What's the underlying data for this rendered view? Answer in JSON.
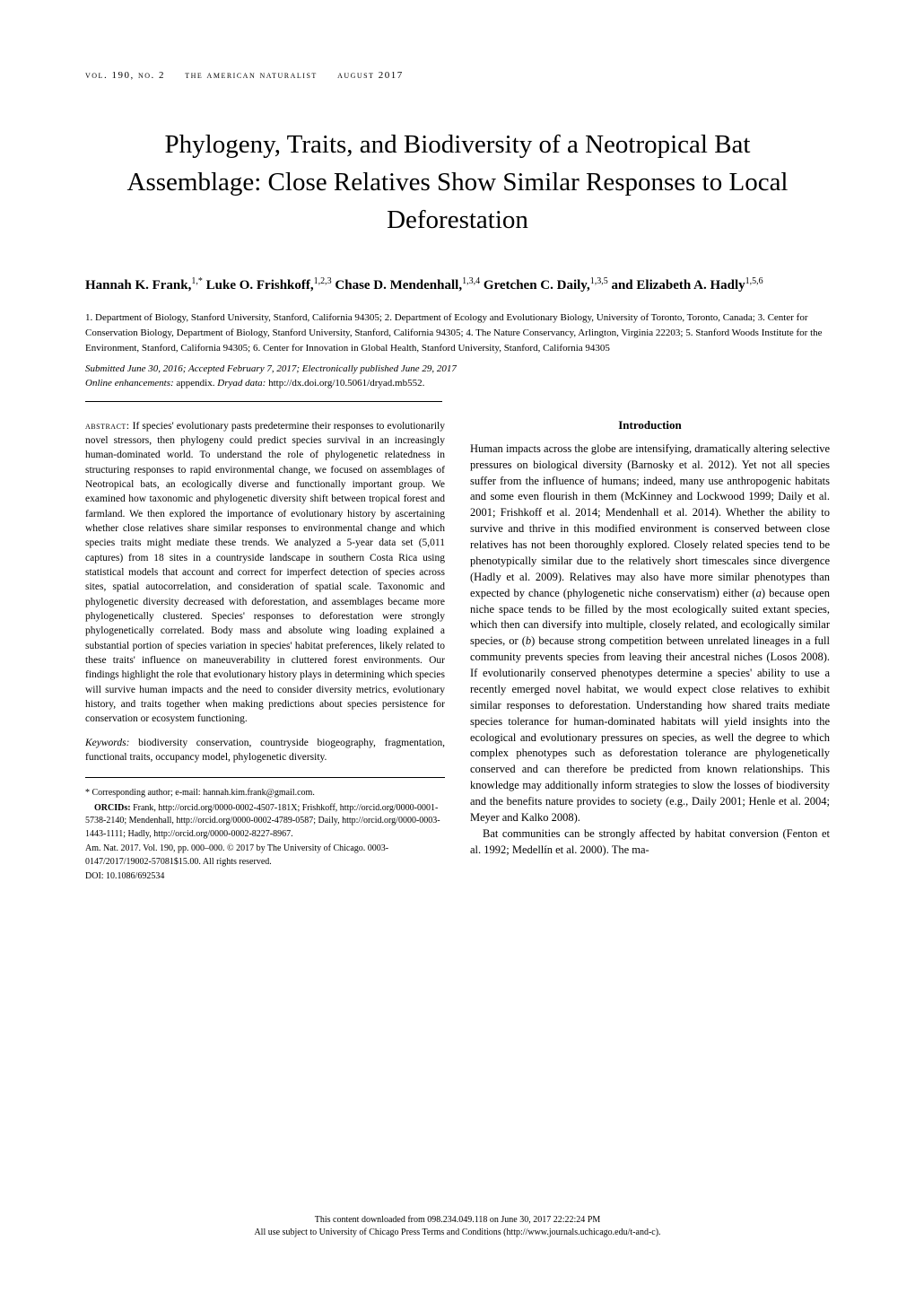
{
  "header": {
    "volume": "vol. 190, no. 2",
    "journal": "the american naturalist",
    "date": "august 2017"
  },
  "title": "Phylogeny, Traits, and Biodiversity of a Neotropical Bat Assemblage: Close Relatives Show Similar Responses to Local Deforestation",
  "authors": {
    "list": "Hannah K. Frank,",
    "sup1": "1,*",
    "a2": " Luke O. Frishkoff,",
    "sup2": "1,2,3",
    "a3": " Chase D. Mendenhall,",
    "sup3": "1,3,4",
    "a4": " Gretchen C. Daily,",
    "sup4": "1,3,5",
    "and": " and Elizabeth A. Hadly",
    "sup5": "1,5,6"
  },
  "affiliations": "1. Department of Biology, Stanford University, Stanford, California 94305;   2. Department of Ecology and Evolutionary Biology, University of Toronto, Toronto, Canada;   3. Center for Conservation Biology, Department of Biology, Stanford University, Stanford, California 94305;   4. The Nature Conservancy, Arlington, Virginia 22203;   5. Stanford Woods Institute for the Environment, Stanford, California 94305;   6. Center for Innovation in Global Health, Stanford University, Stanford, California 94305",
  "submitted": "Submitted June 30, 2016; Accepted February 7, 2017; Electronically published June 29, 2017",
  "enhancements": {
    "label": "Online enhancements:",
    "text": " appendix. ",
    "dryad_label": "Dryad data:",
    "dryad_url": " http://dx.doi.org/10.5061/dryad.mb552."
  },
  "abstract": {
    "label": "abstract:",
    "text": " If species' evolutionary pasts predetermine their responses to evolutionarily novel stressors, then phylogeny could predict species survival in an increasingly human-dominated world. To understand the role of phylogenetic relatedness in structuring responses to rapid environmental change, we focused on assemblages of Neotropical bats, an ecologically diverse and functionally important group. We examined how taxonomic and phylogenetic diversity shift between tropical forest and farmland. We then explored the importance of evolutionary history by ascertaining whether close relatives share similar responses to environmental change and which species traits might mediate these trends. We analyzed a 5-year data set (5,011 captures) from 18 sites in a countryside landscape in southern Costa Rica using statistical models that account and correct for imperfect detection of species across sites, spatial autocorrelation, and consideration of spatial scale. Taxonomic and phylogenetic diversity decreased with deforestation, and assemblages became more phylogenetically clustered. Species' responses to deforestation were strongly phylogenetically correlated. Body mass and absolute wing loading explained a substantial portion of species variation in species' habitat preferences, likely related to these traits' influence on maneuverability in cluttered forest environments. Our findings highlight the role that evolutionary history plays in determining which species will survive human impacts and the need to consider diversity metrics, evolutionary history, and traits together when making predictions about species persistence for conservation or ecosystem functioning."
  },
  "keywords": {
    "label": "Keywords:",
    "text": " biodiversity conservation, countryside biogeography, fragmentation, functional traits, occupancy model, phylogenetic diversity."
  },
  "introduction": {
    "heading": "Introduction",
    "para1_a": "Human impacts across the globe are intensifying, dramatically altering selective pressures on biological diversity (Barnosky et al. 2012). Yet not all species suffer from the influence of humans; indeed, many use anthropogenic habitats and some even flourish in them (McKinney and Lockwood 1999; Daily et al. 2001; Frishkoff et al. 2014; Mendenhall et al. 2014). Whether the ability to survive and thrive in this modified environment is conserved between close relatives has not been thoroughly explored. Closely related species tend to be phenotypically similar due to the relatively short timescales since divergence (Hadly et al. 2009). Relatives may also have more similar phenotypes than expected by chance (phylogenetic niche conservatism) either (",
    "italic_a": "a",
    "para1_b": ") because open niche space tends to be filled by the most ecologically suited extant species, which then can diversify into multiple, closely related, and ecologically similar species, or (",
    "italic_b": "b",
    "para1_c": ") because strong competition between unrelated lineages in a full community prevents species from leaving their ancestral niches (Losos 2008). If evolutionarily conserved phenotypes determine a species' ability to use a recently emerged novel habitat, we would expect close relatives to exhibit similar responses to deforestation. Understanding how shared traits mediate species tolerance for human-dominated habitats will yield insights into the ecological and evolutionary pressures on species, as well the degree to which complex phenotypes such as deforestation tolerance are phylogenetically conserved and can therefore be predicted from known relationships. This knowledge may additionally inform strategies to slow the losses of biodiversity and the benefits nature provides to society (e.g., Daily 2001; Henle et al. 2004; Meyer and Kalko 2008).",
    "para2": "Bat communities can be strongly affected by habitat conversion (Fenton et al. 1992; Medellín et al. 2000). The ma-"
  },
  "footer": {
    "corresponding": "* Corresponding author; e-mail: hannah.kim.frank@gmail.com.",
    "orcids": "ORCIDs: Frank, http://orcid.org/0000-0002-4507-181X; Frishkoff, http://orcid.org/0000-0001-5738-2140; Mendenhall, http://orcid.org/0000-0002-4789-0587; Daily, http://orcid.org/0000-0003-1443-1111; Hadly, http://orcid.org/0000-0002-8227-8967.",
    "journal": "Am. Nat. 2017. Vol. 190, pp. 000–000. © 2017 by The University of Chicago. 0003-0147/2017/19002-57081$15.00. All rights reserved.",
    "doi": "DOI: 10.1086/692534"
  },
  "bottom": {
    "line1": "This content downloaded from 098.234.049.118 on June 30, 2017 22:22:24 PM",
    "line2": "All use subject to University of Chicago Press Terms and Conditions (http://www.journals.uchicago.edu/t-and-c)."
  }
}
